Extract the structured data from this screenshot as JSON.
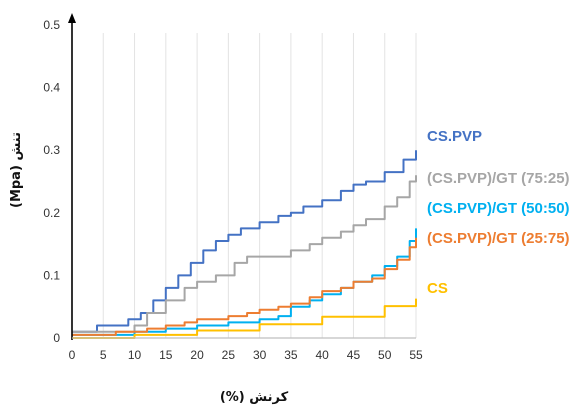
{
  "chart_data": {
    "type": "line",
    "xlabel": "(%) کرنش",
    "ylabel": "(Mpa) تنش",
    "xlim": [
      0,
      55
    ],
    "ylim": [
      0,
      0.5
    ],
    "x_ticks": [
      "0",
      "5",
      "10",
      "15",
      "20",
      "25",
      "30",
      "35",
      "40",
      "45",
      "50",
      "55"
    ],
    "y_ticks": [
      "0",
      "0.1",
      "0.2",
      "0.3",
      "0.4",
      "0.5"
    ],
    "grid": "vertical",
    "legend_position": "right",
    "series": [
      {
        "name": "CS.PVP",
        "color": "#4472C4",
        "points": [
          [
            0,
            0.01
          ],
          [
            3,
            0.01
          ],
          [
            4,
            0.02
          ],
          [
            7,
            0.02
          ],
          [
            9,
            0.03
          ],
          [
            11,
            0.04
          ],
          [
            13,
            0.06
          ],
          [
            15,
            0.08
          ],
          [
            17,
            0.1
          ],
          [
            19,
            0.12
          ],
          [
            21,
            0.14
          ],
          [
            23,
            0.155
          ],
          [
            25,
            0.165
          ],
          [
            27,
            0.175
          ],
          [
            30,
            0.185
          ],
          [
            33,
            0.195
          ],
          [
            35,
            0.2
          ],
          [
            37,
            0.21
          ],
          [
            40,
            0.22
          ],
          [
            43,
            0.235
          ],
          [
            45,
            0.245
          ],
          [
            47,
            0.25
          ],
          [
            50,
            0.265
          ],
          [
            53,
            0.285
          ],
          [
            55,
            0.3
          ]
        ]
      },
      {
        "name": "(CS.PVP)/GT (75:25)",
        "color": "#A6A6A6",
        "points": [
          [
            0,
            0.01
          ],
          [
            8,
            0.01
          ],
          [
            10,
            0.02
          ],
          [
            12,
            0.04
          ],
          [
            15,
            0.06
          ],
          [
            18,
            0.08
          ],
          [
            20,
            0.09
          ],
          [
            23,
            0.1
          ],
          [
            26,
            0.12
          ],
          [
            28,
            0.13
          ],
          [
            32,
            0.13
          ],
          [
            35,
            0.14
          ],
          [
            38,
            0.15
          ],
          [
            40,
            0.16
          ],
          [
            43,
            0.17
          ],
          [
            45,
            0.18
          ],
          [
            47,
            0.19
          ],
          [
            50,
            0.21
          ],
          [
            52,
            0.225
          ],
          [
            54,
            0.25
          ],
          [
            55,
            0.26
          ]
        ]
      },
      {
        "name": "(CS.PVP)/GT (50:50)",
        "color": "#00B0F0",
        "points": [
          [
            0,
            0.005
          ],
          [
            5,
            0.005
          ],
          [
            10,
            0.01
          ],
          [
            15,
            0.015
          ],
          [
            20,
            0.02
          ],
          [
            25,
            0.025
          ],
          [
            30,
            0.03
          ],
          [
            33,
            0.035
          ],
          [
            35,
            0.05
          ],
          [
            38,
            0.06
          ],
          [
            40,
            0.07
          ],
          [
            43,
            0.08
          ],
          [
            45,
            0.09
          ],
          [
            48,
            0.1
          ],
          [
            50,
            0.115
          ],
          [
            52,
            0.13
          ],
          [
            54,
            0.155
          ],
          [
            55,
            0.175
          ]
        ]
      },
      {
        "name": "(CS.PVP)/GT (25:75)",
        "color": "#ED7D31",
        "points": [
          [
            0,
            0.005
          ],
          [
            7,
            0.01
          ],
          [
            12,
            0.015
          ],
          [
            15,
            0.02
          ],
          [
            18,
            0.025
          ],
          [
            20,
            0.03
          ],
          [
            25,
            0.035
          ],
          [
            28,
            0.04
          ],
          [
            30,
            0.045
          ],
          [
            33,
            0.05
          ],
          [
            35,
            0.055
          ],
          [
            38,
            0.065
          ],
          [
            40,
            0.075
          ],
          [
            43,
            0.08
          ],
          [
            45,
            0.09
          ],
          [
            48,
            0.095
          ],
          [
            50,
            0.11
          ],
          [
            52,
            0.125
          ],
          [
            54,
            0.145
          ],
          [
            55,
            0.16
          ]
        ]
      },
      {
        "name": "CS",
        "color": "#FFC000",
        "points": [
          [
            0,
            0.0
          ],
          [
            10,
            0.005
          ],
          [
            20,
            0.012
          ],
          [
            30,
            0.022
          ],
          [
            40,
            0.034
          ],
          [
            50,
            0.051
          ],
          [
            55,
            0.063
          ]
        ]
      }
    ]
  }
}
